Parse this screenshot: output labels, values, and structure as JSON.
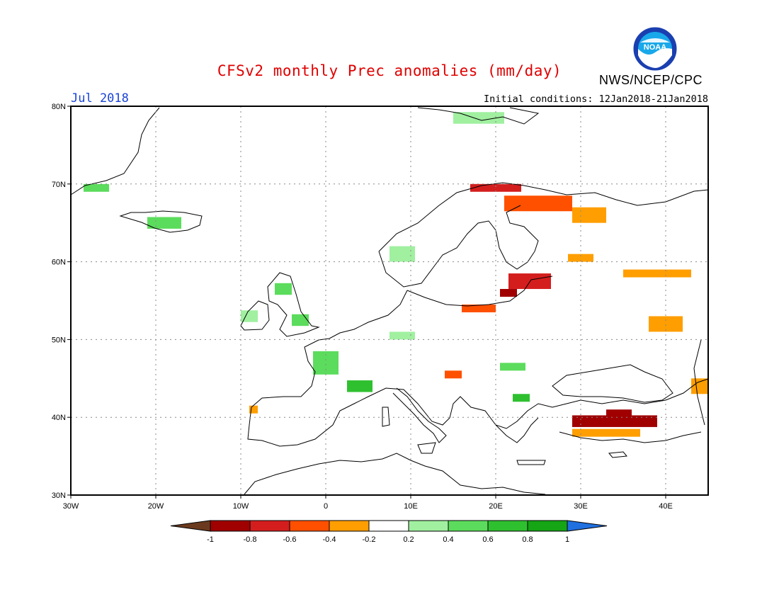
{
  "header": {
    "title": "CFSv2 monthly Prec anomalies (mm/day)",
    "agency": "NWS/NCEP/CPC",
    "logo_text": "NOAA",
    "valid_month": "Jul 2018",
    "initial_conditions": "Initial conditions: 12Jan2018-21Jan2018"
  },
  "map": {
    "lon_range": [
      -30,
      45
    ],
    "lat_range": [
      30,
      80
    ],
    "lon_labels": [
      "30W",
      "20W",
      "10W",
      "0",
      "10E",
      "20E",
      "30E",
      "40E"
    ],
    "lat_labels": [
      "30N",
      "40N",
      "50N",
      "60N",
      "70N",
      "80N"
    ]
  },
  "legend": {
    "labels": [
      "-1",
      "-0.8",
      "-0.6",
      "-0.4",
      "-0.2",
      "0.2",
      "0.4",
      "0.6",
      "0.8",
      "1"
    ],
    "colors": [
      "#6b3a1e",
      "#a00000",
      "#d41e1e",
      "#ff5000",
      "#ff9e00",
      "#ffffff",
      "#a0f0a0",
      "#5cdc5c",
      "#2fc02f",
      "#15a515",
      "#2070e0"
    ]
  },
  "anomalies": [
    {
      "name": "iceland",
      "lon": -19,
      "lat": 65,
      "w": 4,
      "h": 1.5,
      "v": 0.5
    },
    {
      "name": "greenland-east",
      "lon": -27,
      "lat": 69.5,
      "w": 3,
      "h": 1,
      "v": 0.5
    },
    {
      "name": "svalbard",
      "lon": 18,
      "lat": 78.5,
      "w": 6,
      "h": 1.5,
      "v": 0.3
    },
    {
      "name": "scotland",
      "lon": -5,
      "lat": 56.5,
      "w": 2,
      "h": 1.5,
      "v": 0.5
    },
    {
      "name": "ireland",
      "lon": -9,
      "lat": 53,
      "w": 2,
      "h": 1.5,
      "v": 0.3
    },
    {
      "name": "england",
      "lon": -3,
      "lat": 52.5,
      "w": 2,
      "h": 1.5,
      "v": 0.4
    },
    {
      "name": "france-west",
      "lon": 0,
      "lat": 47,
      "w": 3,
      "h": 3,
      "v": 0.4
    },
    {
      "name": "france-south",
      "lon": 4,
      "lat": 44,
      "w": 3,
      "h": 1.5,
      "v": 0.6
    },
    {
      "name": "germany",
      "lon": 9,
      "lat": 50.5,
      "w": 3,
      "h": 1,
      "v": 0.3
    },
    {
      "name": "norway-south",
      "lon": 9,
      "lat": 61,
      "w": 3,
      "h": 2,
      "v": 0.3
    },
    {
      "name": "norway-north",
      "lon": 20,
      "lat": 69.5,
      "w": 6,
      "h": 1,
      "v": -0.6
    },
    {
      "name": "lapland",
      "lon": 25,
      "lat": 67.5,
      "w": 8,
      "h": 2,
      "v": -0.4
    },
    {
      "name": "russia-nw",
      "lon": 31,
      "lat": 66,
      "w": 4,
      "h": 2,
      "v": -0.3
    },
    {
      "name": "karelia",
      "lon": 30,
      "lat": 60.5,
      "w": 3,
      "h": 1,
      "v": -0.3
    },
    {
      "name": "baltic",
      "lon": 24,
      "lat": 57.5,
      "w": 5,
      "h": 2,
      "v": -0.6
    },
    {
      "name": "latvia",
      "lon": 21.5,
      "lat": 56,
      "w": 2,
      "h": 1,
      "v": -0.8
    },
    {
      "name": "poland",
      "lon": 18,
      "lat": 54,
      "w": 4,
      "h": 1,
      "v": -0.4
    },
    {
      "name": "russia-central",
      "lon": 39,
      "lat": 58.5,
      "w": 8,
      "h": 1,
      "v": -0.3
    },
    {
      "name": "ukraine-east",
      "lon": 40,
      "lat": 52,
      "w": 4,
      "h": 2,
      "v": -0.3
    },
    {
      "name": "adriatic",
      "lon": 15,
      "lat": 45.5,
      "w": 2,
      "h": 1,
      "v": -0.5
    },
    {
      "name": "balkans",
      "lon": 23,
      "lat": 42.5,
      "w": 2,
      "h": 1,
      "v": 0.6
    },
    {
      "name": "hungary",
      "lon": 22,
      "lat": 46.5,
      "w": 3,
      "h": 1,
      "v": 0.4
    },
    {
      "name": "black-sea-east",
      "lon": 44,
      "lat": 44,
      "w": 2,
      "h": 2,
      "v": -0.3
    },
    {
      "name": "turkey",
      "lon": 34,
      "lat": 39.5,
      "w": 10,
      "h": 1.5,
      "v": -0.8
    },
    {
      "name": "turkey-core",
      "lon": 34.5,
      "lat": 40.5,
      "w": 3,
      "h": 1,
      "v": -0.9
    },
    {
      "name": "turkey-south",
      "lon": 33,
      "lat": 38,
      "w": 8,
      "h": 1,
      "v": -0.3
    },
    {
      "name": "portugal",
      "lon": -8.5,
      "lat": 41,
      "w": 1,
      "h": 1,
      "v": -0.3
    }
  ]
}
